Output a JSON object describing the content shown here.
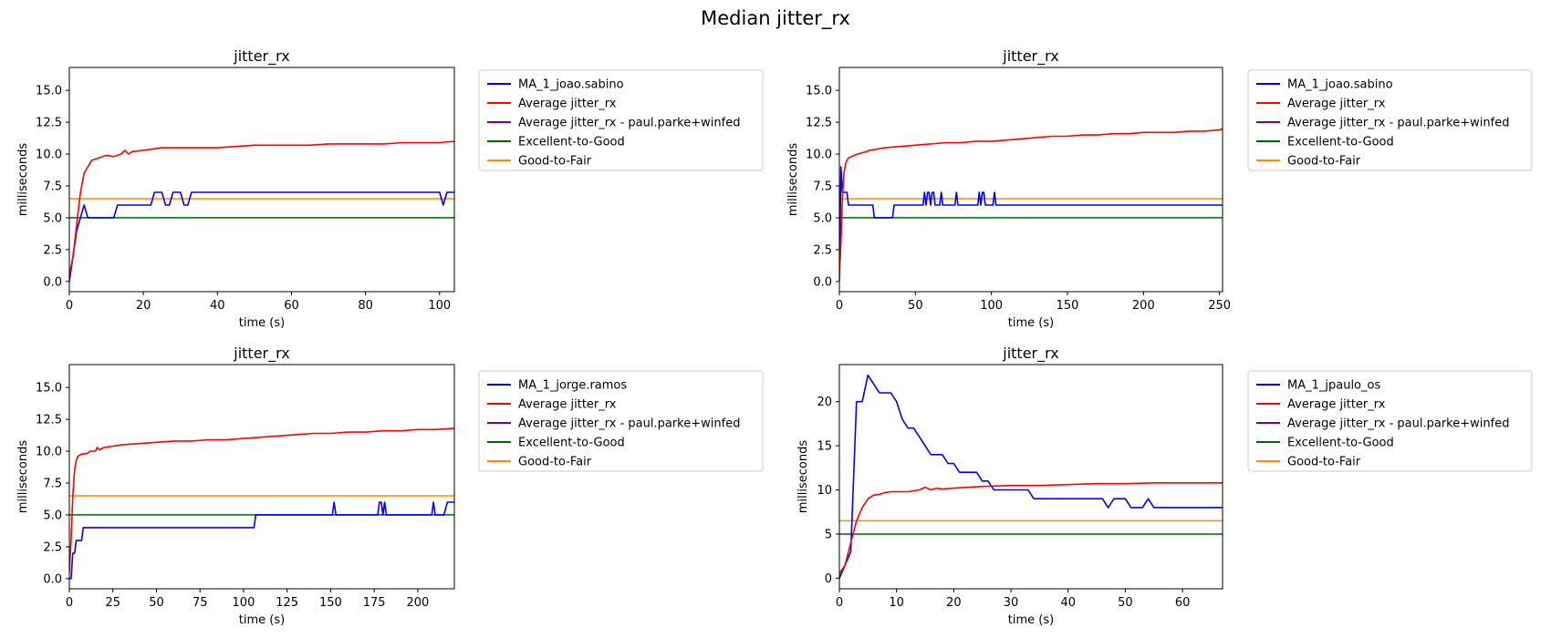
{
  "suptitle": "Median jitter_rx",
  "colors": {
    "user": "#0000ff",
    "average": "#ff0000",
    "average_group": "#800080",
    "excellent_to_good": "#006400",
    "good_to_fair": "#ff8c00"
  },
  "chart_data": [
    {
      "type": "line",
      "title": "jitter_rx",
      "xlabel": "time (s)",
      "ylabel": "milliseconds",
      "xlim": [
        0,
        104
      ],
      "ylim": [
        -0.8,
        16.8
      ],
      "xticks": [
        0,
        20,
        40,
        60,
        80,
        100
      ],
      "yticks": [
        0.0,
        2.5,
        5.0,
        7.5,
        10.0,
        12.5,
        15.0
      ],
      "ytick_format": "1",
      "legend": [
        "MA_1_joao.sabino",
        "Average jitter_rx",
        "Average jitter_rx - paul.parke+winfed",
        "Excellent-to-Good",
        "Good-to-Fair"
      ],
      "legend_placement": "outside-right",
      "thresholds": {
        "excellent_to_good": 5.0,
        "good_to_fair": 6.5
      },
      "series": [
        {
          "key": "user",
          "x": [
            0,
            1,
            2,
            3,
            4,
            5,
            6,
            8,
            10,
            11,
            12,
            13,
            14,
            16,
            18,
            20,
            22,
            23,
            24,
            25,
            26,
            27,
            28,
            29,
            30,
            31,
            32,
            33,
            35,
            40,
            50,
            60,
            70,
            80,
            90,
            100,
            101,
            102,
            103,
            104
          ],
          "y": [
            0,
            2,
            4,
            5,
            6,
            5,
            5,
            5,
            5,
            5,
            5,
            6,
            6,
            6,
            6,
            6,
            6,
            7,
            7,
            7,
            6,
            6,
            7,
            7,
            7,
            6,
            6,
            7,
            7,
            7,
            7,
            7,
            7,
            7,
            7,
            7,
            6,
            7,
            7,
            7
          ]
        },
        {
          "key": "average",
          "x": [
            0,
            1,
            2,
            3,
            4,
            5,
            6,
            7,
            8,
            9,
            10,
            12,
            14,
            15,
            16,
            17,
            20,
            25,
            30,
            35,
            40,
            45,
            50,
            55,
            60,
            65,
            70,
            75,
            80,
            85,
            90,
            95,
            100,
            104
          ],
          "y": [
            0.5,
            2,
            4.5,
            7,
            8.5,
            9,
            9.5,
            9.6,
            9.7,
            9.8,
            9.9,
            9.8,
            10,
            10.3,
            10.0,
            10.2,
            10.3,
            10.5,
            10.5,
            10.5,
            10.5,
            10.6,
            10.7,
            10.7,
            10.7,
            10.7,
            10.8,
            10.8,
            10.8,
            10.8,
            10.9,
            10.9,
            10.9,
            11.0
          ]
        },
        {
          "key": "average_group",
          "x": [],
          "y": []
        }
      ]
    },
    {
      "type": "line",
      "title": "jitter_rx",
      "xlabel": "time (s)",
      "ylabel": "milliseconds",
      "xlim": [
        0,
        252
      ],
      "ylim": [
        -0.8,
        16.8
      ],
      "xticks": [
        0,
        50,
        100,
        150,
        200,
        250
      ],
      "yticks": [
        0.0,
        2.5,
        5.0,
        7.5,
        10.0,
        12.5,
        15.0
      ],
      "ytick_format": "1",
      "legend": [
        "MA_1_joao.sabino",
        "Average jitter_rx",
        "Average jitter_rx - paul.parke+winfed",
        "Excellent-to-Good",
        "Good-to-Fair"
      ],
      "legend_placement": "outside-right",
      "thresholds": {
        "excellent_to_good": 5.0,
        "good_to_fair": 6.5
      },
      "series": [
        {
          "key": "user",
          "x": [
            0,
            1,
            2,
            3,
            4,
            5,
            6,
            8,
            10,
            15,
            20,
            22,
            23,
            24,
            25,
            30,
            35,
            36,
            40,
            45,
            50,
            55,
            56,
            57,
            58,
            59,
            60,
            61,
            62,
            63,
            64,
            65,
            66,
            67,
            68,
            70,
            75,
            76,
            77,
            78,
            80,
            85,
            90,
            91,
            92,
            93,
            94,
            95,
            96,
            97,
            98,
            99,
            100,
            101,
            102,
            103,
            105,
            110,
            150,
            200,
            252
          ],
          "y": [
            0,
            9,
            7,
            7,
            7,
            7,
            6,
            6,
            6,
            6,
            6,
            6,
            5,
            5,
            5,
            5,
            5,
            6,
            6,
            6,
            6,
            6,
            7,
            6,
            7,
            7,
            6,
            7,
            7,
            6,
            6,
            6,
            6,
            7,
            6,
            6,
            6,
            6,
            7,
            6,
            6,
            6,
            6,
            6,
            7,
            6,
            7,
            7,
            6,
            6,
            6,
            6,
            6,
            6,
            7,
            6,
            6,
            6,
            6,
            6,
            6
          ]
        },
        {
          "key": "average",
          "x": [
            0,
            1,
            2,
            3,
            4,
            5,
            6,
            8,
            10,
            12,
            15,
            18,
            20,
            25,
            30,
            40,
            50,
            60,
            70,
            80,
            90,
            100,
            110,
            120,
            130,
            140,
            150,
            160,
            170,
            180,
            190,
            200,
            210,
            220,
            230,
            240,
            250,
            252
          ],
          "y": [
            0.5,
            3,
            6.5,
            8.5,
            9.2,
            9.5,
            9.7,
            9.8,
            9.9,
            10.0,
            10.1,
            10.2,
            10.3,
            10.4,
            10.5,
            10.6,
            10.7,
            10.8,
            10.9,
            10.9,
            11.0,
            11.0,
            11.1,
            11.2,
            11.3,
            11.4,
            11.4,
            11.5,
            11.5,
            11.6,
            11.6,
            11.7,
            11.7,
            11.7,
            11.8,
            11.8,
            11.9,
            12.0
          ]
        },
        {
          "key": "average_group",
          "x": [],
          "y": []
        }
      ]
    },
    {
      "type": "line",
      "title": "jitter_rx",
      "xlabel": "time (s)",
      "ylabel": "milliseconds",
      "xlim": [
        0,
        221
      ],
      "ylim": [
        -0.8,
        16.8
      ],
      "xticks": [
        0,
        25,
        50,
        75,
        100,
        125,
        150,
        175,
        200
      ],
      "yticks": [
        0.0,
        2.5,
        5.0,
        7.5,
        10.0,
        12.5,
        15.0
      ],
      "ytick_format": "1",
      "legend": [
        "MA_1_jorge.ramos",
        "Average jitter_rx",
        "Average jitter_rx - paul.parke+winfed",
        "Excellent-to-Good",
        "Good-to-Fair"
      ],
      "legend_placement": "outside-right",
      "thresholds": {
        "excellent_to_good": 5.0,
        "good_to_fair": 6.5
      },
      "series": [
        {
          "key": "user",
          "x": [
            0,
            1,
            2,
            3,
            4,
            5,
            6,
            7,
            8,
            10,
            20,
            50,
            80,
            100,
            105,
            106,
            107,
            110,
            130,
            150,
            151,
            152,
            153,
            155,
            170,
            177,
            178,
            179,
            180,
            181,
            182,
            183,
            185,
            200,
            208,
            209,
            210,
            211,
            215,
            217,
            218,
            219,
            221
          ],
          "y": [
            0,
            0,
            2,
            2,
            3,
            3,
            3,
            3,
            4,
            4,
            4,
            4,
            4,
            4,
            4,
            4,
            5,
            5,
            5,
            5,
            5,
            6,
            5,
            5,
            5,
            5,
            6,
            6,
            5,
            6,
            5,
            5,
            5,
            5,
            5,
            6,
            5,
            5,
            5,
            6,
            6,
            6,
            6
          ]
        },
        {
          "key": "average",
          "x": [
            0,
            1,
            2,
            3,
            4,
            5,
            6,
            8,
            10,
            12,
            15,
            16,
            17,
            20,
            25,
            30,
            40,
            50,
            60,
            70,
            80,
            90,
            100,
            110,
            120,
            130,
            140,
            150,
            160,
            170,
            180,
            190,
            200,
            210,
            221
          ],
          "y": [
            0.5,
            3,
            6.5,
            8.5,
            9.3,
            9.6,
            9.7,
            9.8,
            9.8,
            10.0,
            10.0,
            10.3,
            10.1,
            10.3,
            10.4,
            10.5,
            10.6,
            10.7,
            10.8,
            10.8,
            10.9,
            10.9,
            11.0,
            11.1,
            11.2,
            11.3,
            11.4,
            11.4,
            11.5,
            11.5,
            11.6,
            11.6,
            11.7,
            11.7,
            11.8
          ]
        },
        {
          "key": "average_group",
          "x": [],
          "y": []
        }
      ]
    },
    {
      "type": "line",
      "title": "jitter_rx",
      "xlabel": "time (s)",
      "ylabel": "milliseconds",
      "xlim": [
        0,
        67
      ],
      "ylim": [
        -1.2,
        24.2
      ],
      "xticks": [
        0,
        10,
        20,
        30,
        40,
        50,
        60
      ],
      "yticks": [
        0,
        5,
        10,
        15,
        20
      ],
      "ytick_format": "0",
      "legend": [
        "MA_1_jpaulo_os",
        "Average jitter_rx",
        "Average jitter_rx - paul.parke+winfed",
        "Excellent-to-Good",
        "Good-to-Fair"
      ],
      "legend_placement": "outside-right",
      "thresholds": {
        "excellent_to_good": 5.0,
        "good_to_fair": 6.5
      },
      "series": [
        {
          "key": "user",
          "x": [
            0,
            1,
            2,
            3,
            4,
            5,
            6,
            7,
            8,
            9,
            10,
            11,
            12,
            13,
            14,
            15,
            16,
            17,
            18,
            19,
            20,
            21,
            22,
            23,
            24,
            25,
            26,
            27,
            28,
            29,
            30,
            31,
            32,
            33,
            34,
            35,
            40,
            45,
            46,
            47,
            48,
            49,
            50,
            51,
            52,
            53,
            54,
            55,
            56,
            60,
            67
          ],
          "y": [
            0,
            1.5,
            3,
            20,
            20,
            23,
            22,
            21,
            21,
            21,
            20,
            18,
            17,
            17,
            16,
            15,
            14,
            14,
            14,
            13,
            13,
            12,
            12,
            12,
            12,
            11,
            11,
            10,
            10,
            10,
            10,
            10,
            10,
            10,
            9,
            9,
            9,
            9,
            9,
            8,
            9,
            9,
            9,
            8,
            8,
            8,
            9,
            8,
            8,
            8,
            8
          ]
        },
        {
          "key": "average",
          "x": [
            0,
            1,
            2,
            3,
            4,
            5,
            6,
            7,
            8,
            9,
            10,
            12,
            14,
            15,
            16,
            17,
            18,
            20,
            25,
            30,
            35,
            40,
            45,
            50,
            55,
            60,
            65,
            67
          ],
          "y": [
            0.5,
            1.5,
            4,
            6.5,
            8,
            9,
            9.4,
            9.5,
            9.7,
            9.8,
            9.8,
            9.8,
            10,
            10.3,
            10.0,
            10.2,
            10.1,
            10.2,
            10.4,
            10.5,
            10.5,
            10.6,
            10.7,
            10.7,
            10.8,
            10.8,
            10.8,
            10.8
          ]
        },
        {
          "key": "average_group",
          "x": [],
          "y": []
        }
      ]
    }
  ]
}
